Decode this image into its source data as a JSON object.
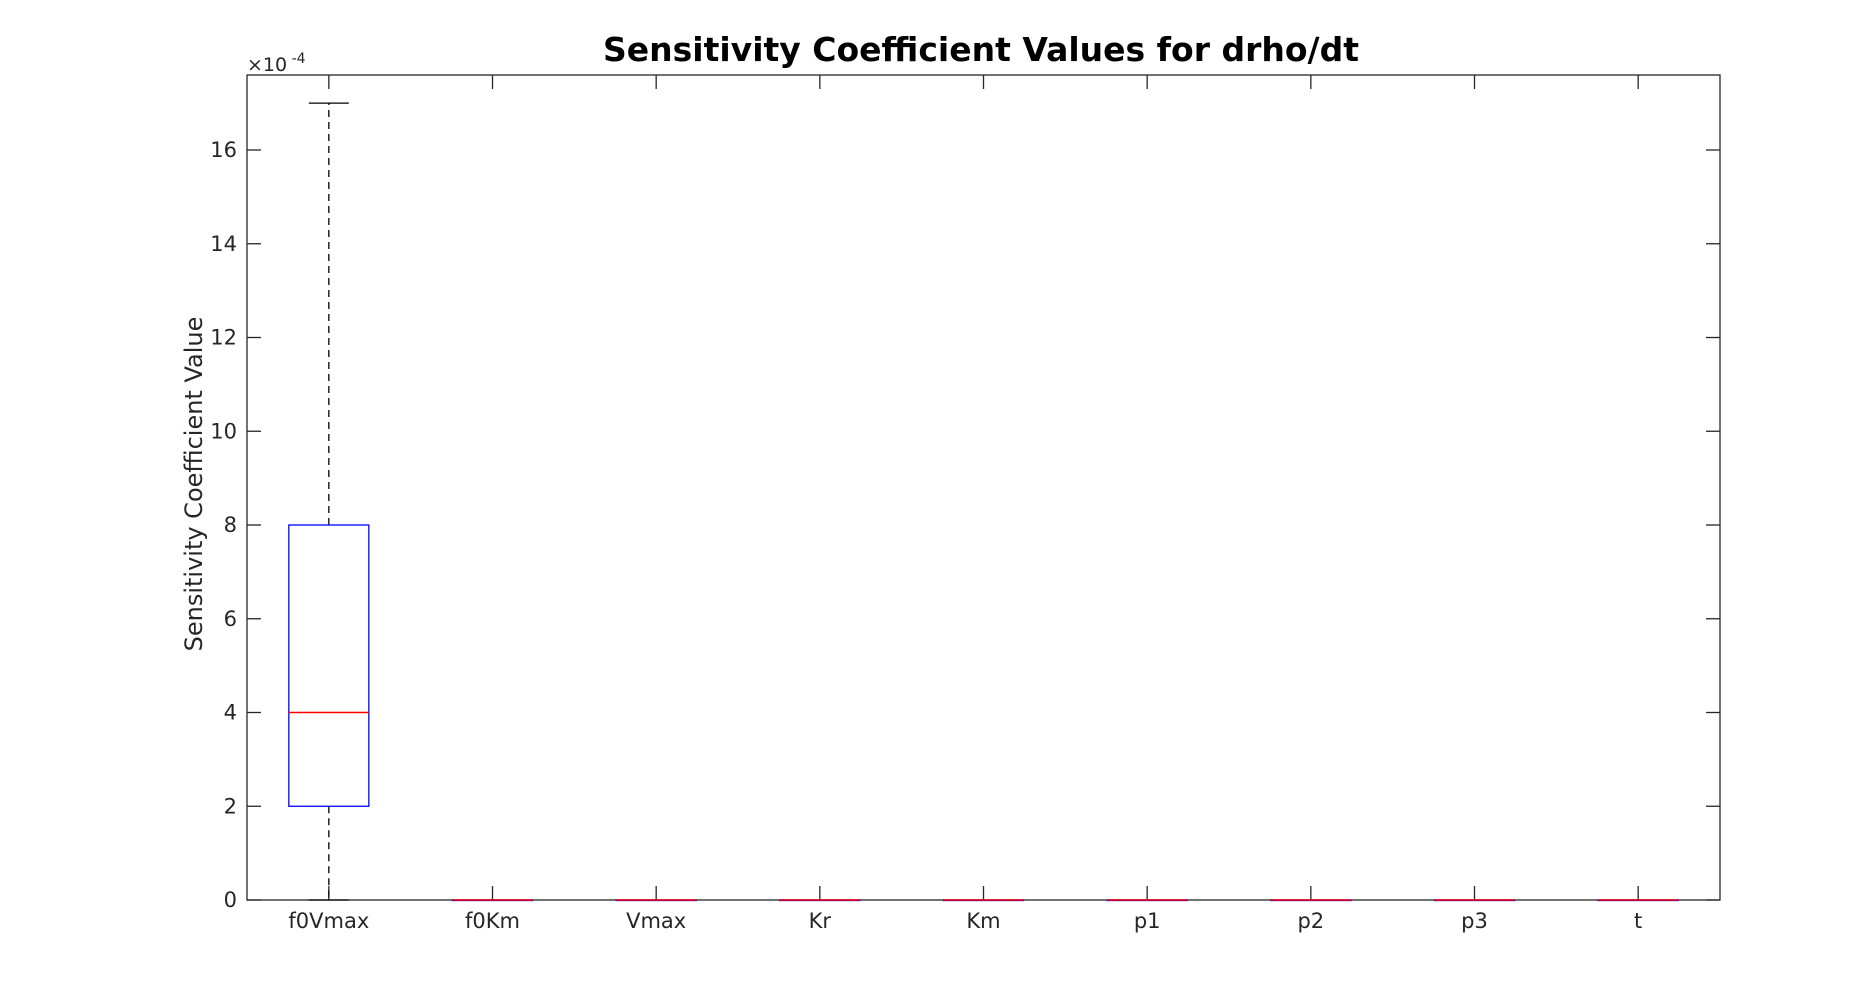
{
  "chart_data": {
    "type": "boxplot",
    "title": "Sensitivity Coefficient Values for drho/dt",
    "xlabel": "",
    "ylabel": "Sensitivity Coefficient Value",
    "y_multiplier_label": "×10",
    "y_multiplier_exponent": "-4",
    "ylim": [
      0,
      17.6
    ],
    "yticks": [
      0,
      2,
      4,
      6,
      8,
      10,
      12,
      14,
      16
    ],
    "grid": false,
    "categories": [
      "f0Vmax",
      "f0Km",
      "Vmax",
      "Kr",
      "Km",
      "p1",
      "p2",
      "p3",
      "t"
    ],
    "boxes": [
      {
        "min": 0,
        "q1": 2,
        "median": 4,
        "q3": 8,
        "max": 17
      },
      {
        "min": 0,
        "q1": 0,
        "median": 0,
        "q3": 0,
        "max": 0
      },
      {
        "min": 0,
        "q1": 0,
        "median": 0,
        "q3": 0,
        "max": 0
      },
      {
        "min": 0,
        "q1": 0,
        "median": 0,
        "q3": 0,
        "max": 0
      },
      {
        "min": 0,
        "q1": 0,
        "median": 0,
        "q3": 0,
        "max": 0
      },
      {
        "min": 0,
        "q1": 0,
        "median": 0,
        "q3": 0,
        "max": 0
      },
      {
        "min": 0,
        "q1": 0,
        "median": 0,
        "q3": 0,
        "max": 0
      },
      {
        "min": 0,
        "q1": 0,
        "median": 0,
        "q3": 0,
        "max": 0
      },
      {
        "min": 0,
        "q1": 0,
        "median": 0,
        "q3": 0,
        "max": 0
      }
    ],
    "colors": {
      "box": "#0000ff",
      "median": "#ff0000",
      "whisker": "#000000",
      "axes": "#262626"
    }
  }
}
